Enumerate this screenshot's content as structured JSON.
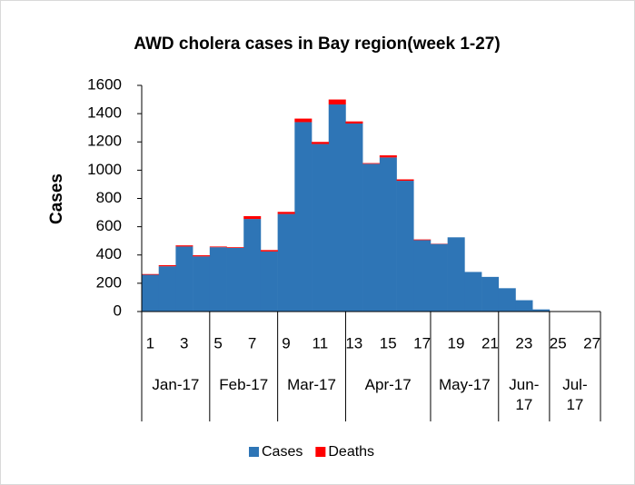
{
  "chart_data": {
    "type": "stacked_bar",
    "title": "AWD cholera cases in Bay region(week 1-27)",
    "ylabel": "Cases",
    "categories": [
      1,
      null,
      3,
      null,
      5,
      null,
      7,
      null,
      9,
      null,
      11,
      null,
      13,
      null,
      15,
      null,
      17,
      null,
      19,
      null,
      21,
      null,
      23,
      null,
      25,
      null,
      27
    ],
    "groups": [
      {
        "label": "Jan-17",
        "count": 4
      },
      {
        "label": "Feb-17",
        "count": 4
      },
      {
        "label": "Mar-17",
        "count": 4
      },
      {
        "label": "Apr-17",
        "count": 5
      },
      {
        "label": "May-17",
        "count": 4
      },
      {
        "label": "Jun-17",
        "count": 3
      },
      {
        "label": "Jul-17",
        "count": 3
      }
    ],
    "series": [
      {
        "name": "Cases",
        "color": "#2e75b6",
        "values": [
          260,
          320,
          460,
          390,
          455,
          450,
          655,
          425,
          690,
          1340,
          1185,
          1465,
          1330,
          1045,
          1090,
          925,
          505,
          478,
          525,
          280,
          245,
          165,
          80,
          15,
          0,
          0,
          0
        ]
      },
      {
        "name": "Deaths",
        "color": "#ff0000",
        "values": [
          5,
          8,
          8,
          8,
          5,
          5,
          20,
          10,
          15,
          25,
          15,
          35,
          15,
          5,
          15,
          10,
          5,
          2,
          0,
          0,
          0,
          0,
          0,
          0,
          0,
          0,
          0
        ]
      }
    ],
    "ylim": [
      0,
      1600
    ],
    "yticks": [
      0,
      200,
      400,
      600,
      800,
      1000,
      1200,
      1400,
      1600
    ]
  }
}
